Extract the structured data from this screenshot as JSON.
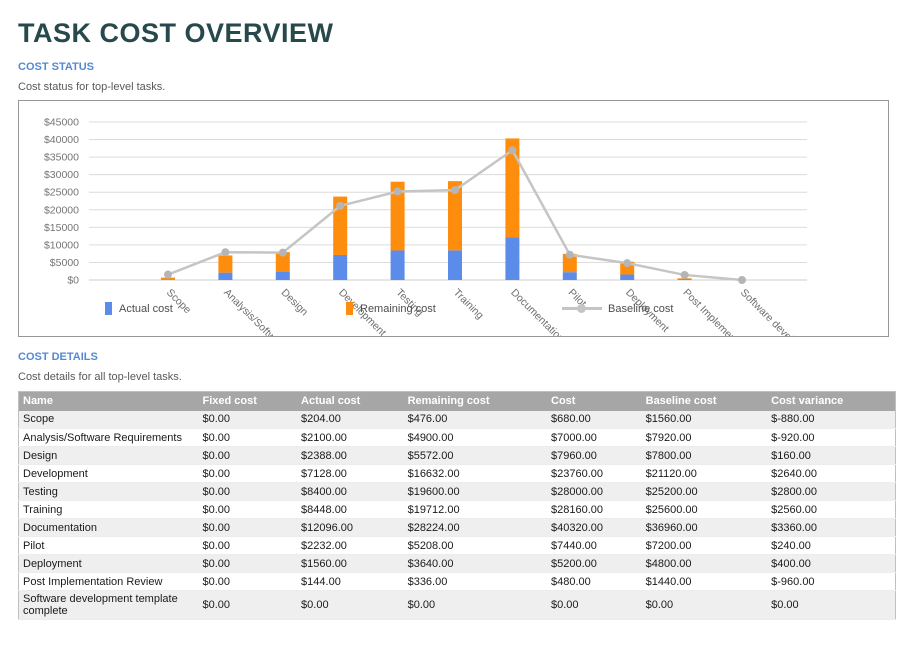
{
  "page": {
    "title": "TASK COST OVERVIEW"
  },
  "cost_status": {
    "heading": "COST STATUS",
    "subtitle": "Cost status for top-level tasks."
  },
  "chart_data": {
    "type": "bar",
    "stacked": true,
    "title": "",
    "xlabel": "",
    "ylabel": "",
    "ylim": [
      0,
      45000
    ],
    "ytick_step": 5000,
    "ytick_prefix": "$",
    "grid": true,
    "legend_position": "bottom",
    "categories": [
      "Scope",
      "Analysis/Software Requirements",
      "Design",
      "Development",
      "Testing",
      "Training",
      "Documentation",
      "Pilot",
      "Deployment",
      "Post Implementation Review",
      "Software development template complete"
    ],
    "series": [
      {
        "name": "Actual cost",
        "type": "bar",
        "color": "#5c8cea",
        "values": [
          204,
          2100,
          2388,
          7128,
          8400,
          8448,
          12096,
          2232,
          1560,
          144,
          0
        ]
      },
      {
        "name": "Remaining cost",
        "type": "bar",
        "color": "#ff8d0d",
        "values": [
          476,
          4900,
          5572,
          16632,
          19600,
          19712,
          28224,
          5208,
          3640,
          336,
          0
        ]
      },
      {
        "name": "Baseline cost",
        "type": "line",
        "color": "#c5c5c5",
        "values": [
          1560,
          7920,
          7800,
          21120,
          25200,
          25600,
          36960,
          7200,
          4800,
          1440,
          0
        ]
      }
    ]
  },
  "cost_details": {
    "heading": "COST DETAILS",
    "subtitle": "Cost details for all top-level tasks.",
    "table": {
      "columns": [
        "Name",
        "Fixed cost",
        "Actual cost",
        "Remaining cost",
        "Cost",
        "Baseline cost",
        "Cost variance"
      ],
      "rows": [
        [
          "Scope",
          "$0.00",
          "$204.00",
          "$476.00",
          "$680.00",
          "$1560.00",
          "$-880.00"
        ],
        [
          "Analysis/Software Requirements",
          "$0.00",
          "$2100.00",
          "$4900.00",
          "$7000.00",
          "$7920.00",
          "$-920.00"
        ],
        [
          "Design",
          "$0.00",
          "$2388.00",
          "$5572.00",
          "$7960.00",
          "$7800.00",
          "$160.00"
        ],
        [
          "Development",
          "$0.00",
          "$7128.00",
          "$16632.00",
          "$23760.00",
          "$21120.00",
          "$2640.00"
        ],
        [
          "Testing",
          "$0.00",
          "$8400.00",
          "$19600.00",
          "$28000.00",
          "$25200.00",
          "$2800.00"
        ],
        [
          "Training",
          "$0.00",
          "$8448.00",
          "$19712.00",
          "$28160.00",
          "$25600.00",
          "$2560.00"
        ],
        [
          "Documentation",
          "$0.00",
          "$12096.00",
          "$28224.00",
          "$40320.00",
          "$36960.00",
          "$3360.00"
        ],
        [
          "Pilot",
          "$0.00",
          "$2232.00",
          "$5208.00",
          "$7440.00",
          "$7200.00",
          "$240.00"
        ],
        [
          "Deployment",
          "$0.00",
          "$1560.00",
          "$3640.00",
          "$5200.00",
          "$4800.00",
          "$400.00"
        ],
        [
          "Post Implementation Review",
          "$0.00",
          "$144.00",
          "$336.00",
          "$480.00",
          "$1440.00",
          "$-960.00"
        ],
        [
          "Software development template complete",
          "$0.00",
          "$0.00",
          "$0.00",
          "$0.00",
          "$0.00",
          "$0.00"
        ]
      ]
    }
  },
  "colors": {
    "title": "#27494c",
    "section_heading": "#5489d1",
    "bar_actual": "#5c8cea",
    "bar_remaining": "#ff8d0d",
    "baseline_line": "#c5c5c5",
    "table_header_bg": "#a6a6a6",
    "row_alt_bg": "#efefef"
  }
}
